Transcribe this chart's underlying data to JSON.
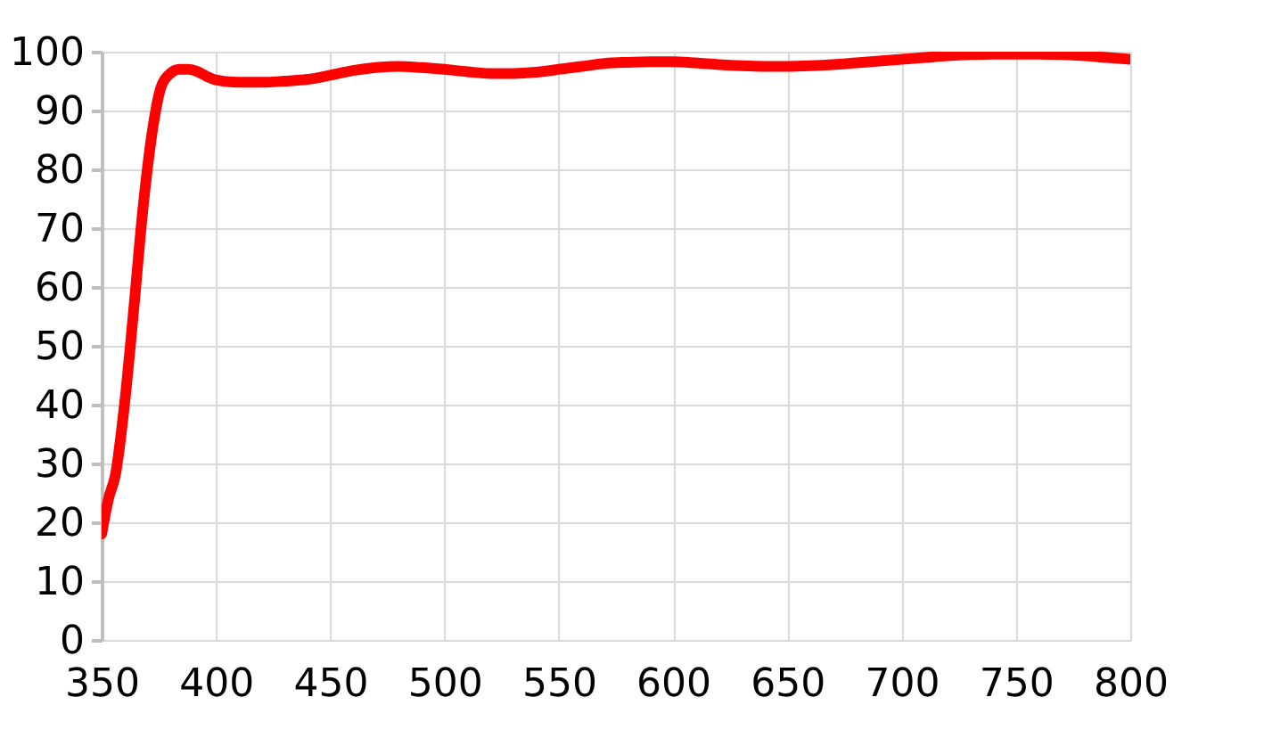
{
  "chart_data": {
    "type": "line",
    "x": [
      350,
      353,
      356,
      360,
      364,
      368,
      372,
      376,
      380,
      384,
      388,
      392,
      396,
      400,
      410,
      420,
      430,
      440,
      450,
      460,
      470,
      480,
      490,
      500,
      510,
      520,
      530,
      540,
      550,
      560,
      570,
      580,
      590,
      600,
      610,
      620,
      630,
      640,
      650,
      660,
      670,
      680,
      690,
      700,
      710,
      720,
      730,
      740,
      750,
      760,
      770,
      780,
      790,
      800
    ],
    "series": [
      {
        "color": "#ff0000",
        "values": [
          18,
          24,
          28,
          40,
          56,
          73,
          86,
          94,
          96.3,
          97,
          97,
          96.6,
          95.8,
          95.2,
          94.8,
          94.8,
          95,
          95.3,
          96,
          96.8,
          97.3,
          97.5,
          97.3,
          97,
          96.6,
          96.3,
          96.3,
          96.5,
          97,
          97.5,
          98,
          98.2,
          98.3,
          98.3,
          98.1,
          97.8,
          97.6,
          97.5,
          97.5,
          97.6,
          97.8,
          98.1,
          98.4,
          98.7,
          99,
          99.3,
          99.5,
          99.6,
          99.6,
          99.6,
          99.5,
          99.3,
          99,
          98.7
        ]
      }
    ],
    "xlim": [
      350,
      800
    ],
    "xticks": [
      350,
      400,
      450,
      500,
      550,
      600,
      650,
      700,
      750,
      800
    ],
    "ylim": [
      0,
      100
    ],
    "yticks": [
      0,
      10,
      20,
      30,
      40,
      50,
      60,
      70,
      80,
      90,
      100
    ],
    "grid": true
  }
}
